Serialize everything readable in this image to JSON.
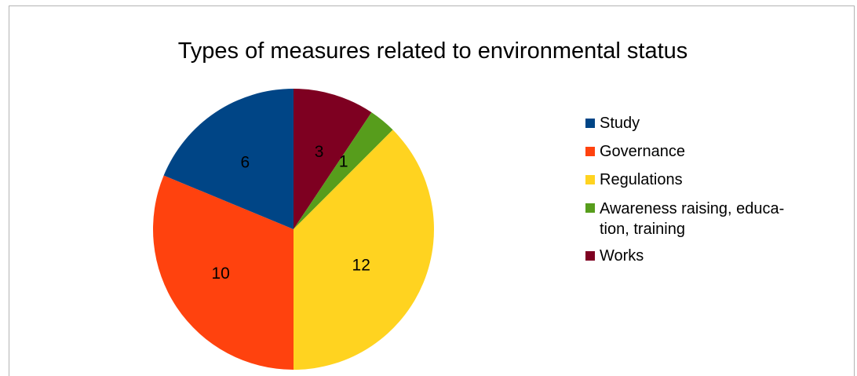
{
  "chart_data": {
    "type": "pie",
    "title": "Types of measures related to environmental status",
    "slices": [
      {
        "label": "Works",
        "value": 3,
        "data_label": "3",
        "color": "#7e0021"
      },
      {
        "label": "Awareness raising, educa-tion, training",
        "value": 1,
        "data_label": "1",
        "color": "#579d1c"
      },
      {
        "label": "Regulations",
        "value": 12,
        "data_label": "12",
        "color": "#ffd320"
      },
      {
        "label": "Governance",
        "value": 10,
        "data_label": "10",
        "color": "#ff420e"
      },
      {
        "label": "Study",
        "value": 6,
        "data_label": "6",
        "color": "#004586"
      }
    ],
    "legend": [
      {
        "label": "Study",
        "color": "#004586"
      },
      {
        "label": "Governance",
        "color": "#ff420e"
      },
      {
        "label": "Regulations",
        "color": "#ffd320"
      },
      {
        "label": "Awareness raising, educa-tion, training",
        "color": "#579d1c"
      },
      {
        "label": "Works",
        "color": "#7e0021"
      }
    ],
    "legend_placement": "right"
  }
}
